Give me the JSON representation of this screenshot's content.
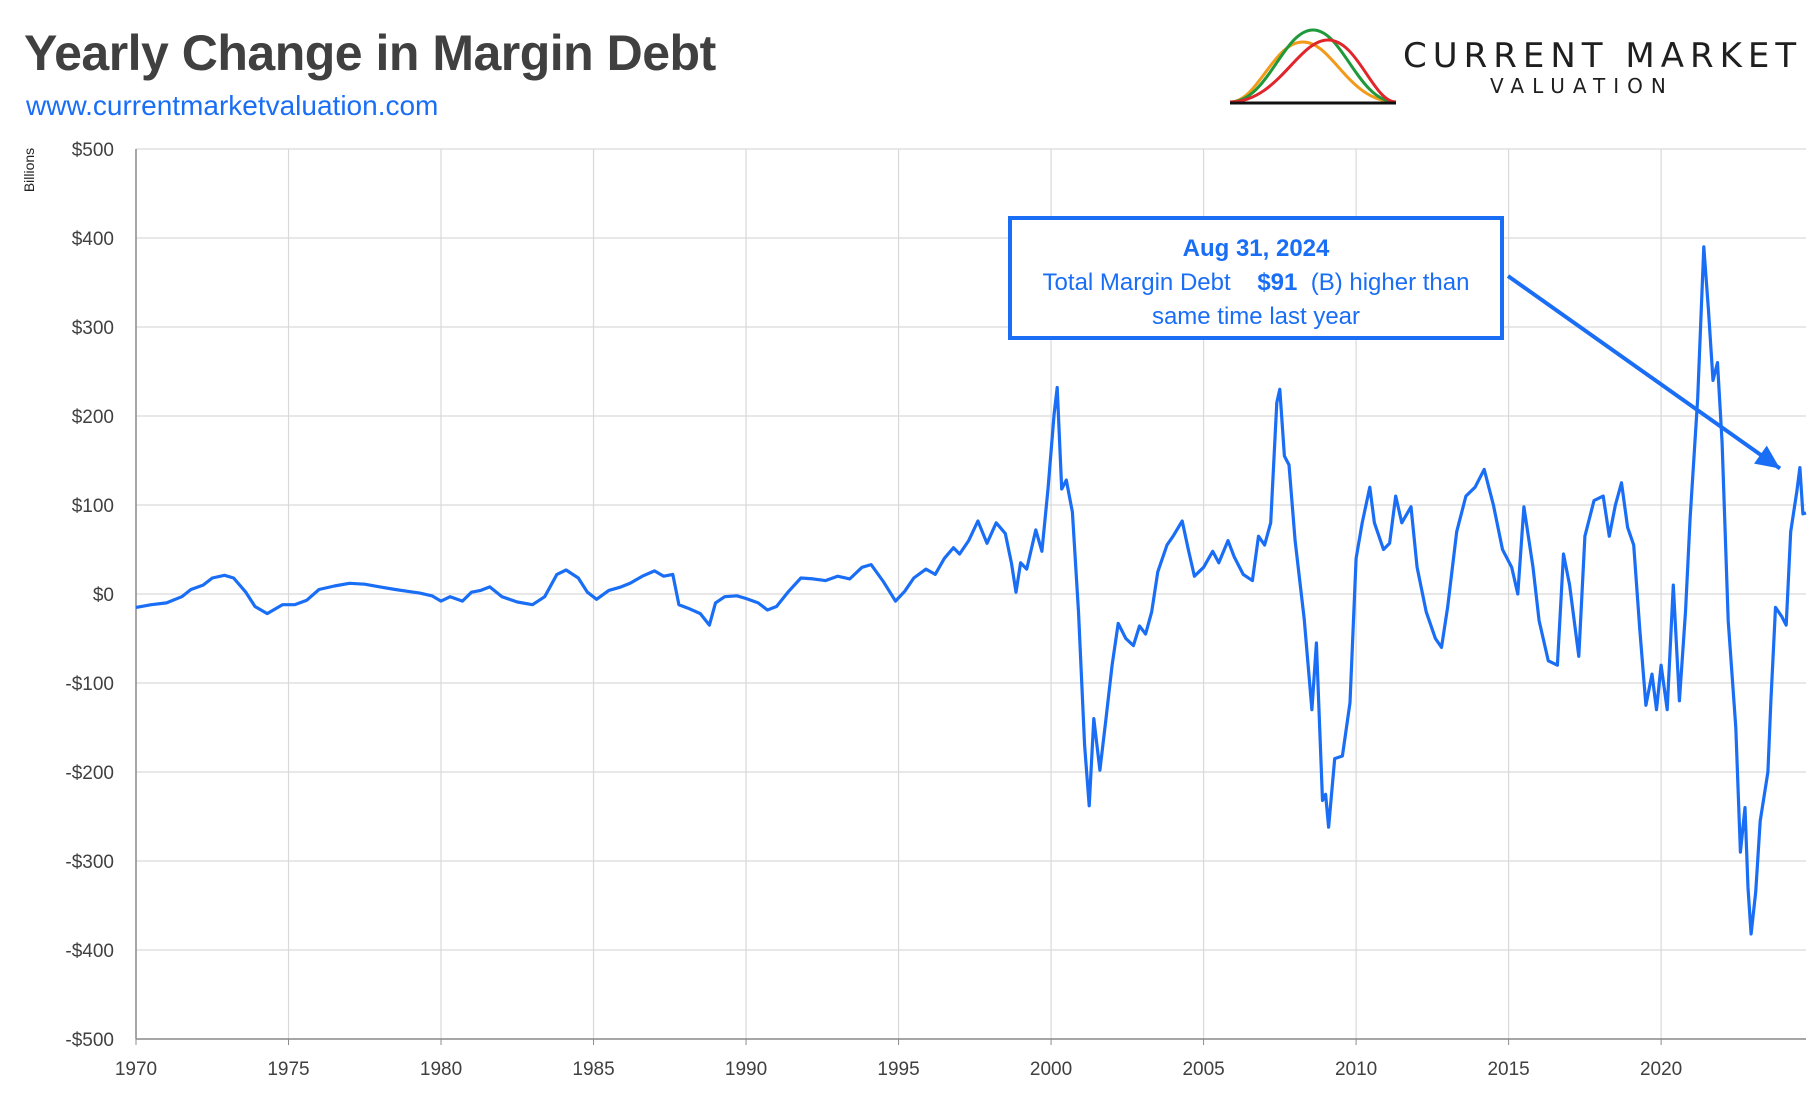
{
  "header": {
    "title": "Yearly Change in Margin Debt",
    "url": "www.currentmarketvaluation.com"
  },
  "logo": {
    "line1": "CURRENT MARKET",
    "line2": "VALUATION",
    "colors": {
      "orange": "#f29a1a",
      "green": "#1f9a3a",
      "red": "#e0262b",
      "base": "#111111"
    }
  },
  "annotation": {
    "date": "Aug 31, 2024",
    "label": "Total Margin Debt",
    "value": "$91",
    "suffix": " (B) higher than",
    "line3": "same time last year"
  },
  "chart_data": {
    "type": "line",
    "title": "Yearly Change in Margin Debt",
    "ylabel": "Billions",
    "xlabel": "",
    "xlim": [
      1970,
      2024.75
    ],
    "ylim": [
      -500,
      500
    ],
    "x_ticks": [
      "1970",
      "1975",
      "1980",
      "1985",
      "1990",
      "1995",
      "2000",
      "2005",
      "2010",
      "2015",
      "2020"
    ],
    "y_ticks": [
      "$500",
      "$400",
      "$300",
      "$200",
      "$100",
      "$0",
      "-$100",
      "-$200",
      "-$300",
      "-$400",
      "-$500"
    ],
    "grid": true,
    "color": "#1a6ef5",
    "series": [
      {
        "points": [
          [
            1970.0,
            -15
          ],
          [
            1970.5,
            -12
          ],
          [
            1971.0,
            -10
          ],
          [
            1971.5,
            -3
          ],
          [
            1971.8,
            5
          ],
          [
            1972.2,
            10
          ],
          [
            1972.5,
            18
          ],
          [
            1972.9,
            21
          ],
          [
            1973.2,
            18
          ],
          [
            1973.6,
            2
          ],
          [
            1973.9,
            -14
          ],
          [
            1974.3,
            -22
          ],
          [
            1974.8,
            -12
          ],
          [
            1975.2,
            -12
          ],
          [
            1975.6,
            -7
          ],
          [
            1976.0,
            5
          ],
          [
            1976.5,
            9
          ],
          [
            1977.0,
            12
          ],
          [
            1977.5,
            11
          ],
          [
            1978.0,
            8
          ],
          [
            1978.5,
            5
          ],
          [
            1978.9,
            3
          ],
          [
            1979.3,
            1
          ],
          [
            1979.7,
            -2
          ],
          [
            1980.0,
            -8
          ],
          [
            1980.3,
            -3
          ],
          [
            1980.7,
            -8
          ],
          [
            1981.0,
            2
          ],
          [
            1981.3,
            4
          ],
          [
            1981.6,
            8
          ],
          [
            1982.0,
            -3
          ],
          [
            1982.5,
            -9
          ],
          [
            1983.0,
            -12
          ],
          [
            1983.4,
            -3
          ],
          [
            1983.8,
            22
          ],
          [
            1984.1,
            27
          ],
          [
            1984.5,
            18
          ],
          [
            1984.8,
            2
          ],
          [
            1985.1,
            -6
          ],
          [
            1985.5,
            4
          ],
          [
            1985.9,
            8
          ],
          [
            1986.2,
            12
          ],
          [
            1986.6,
            20
          ],
          [
            1987.0,
            26
          ],
          [
            1987.3,
            20
          ],
          [
            1987.6,
            22
          ],
          [
            1987.8,
            -12
          ],
          [
            1988.1,
            -16
          ],
          [
            1988.5,
            -22
          ],
          [
            1988.8,
            -35
          ],
          [
            1989.0,
            -10
          ],
          [
            1989.3,
            -3
          ],
          [
            1989.7,
            -2
          ],
          [
            1990.0,
            -5
          ],
          [
            1990.4,
            -10
          ],
          [
            1990.7,
            -18
          ],
          [
            1991.0,
            -14
          ],
          [
            1991.4,
            3
          ],
          [
            1991.8,
            18
          ],
          [
            1992.2,
            17
          ],
          [
            1992.6,
            15
          ],
          [
            1993.0,
            20
          ],
          [
            1993.4,
            17
          ],
          [
            1993.8,
            30
          ],
          [
            1994.1,
            33
          ],
          [
            1994.5,
            14
          ],
          [
            1994.9,
            -8
          ],
          [
            1995.2,
            3
          ],
          [
            1995.5,
            18
          ],
          [
            1995.9,
            28
          ],
          [
            1996.2,
            22
          ],
          [
            1996.5,
            40
          ],
          [
            1996.8,
            52
          ],
          [
            1997.0,
            45
          ],
          [
            1997.3,
            60
          ],
          [
            1997.6,
            82
          ],
          [
            1997.9,
            57
          ],
          [
            1998.2,
            80
          ],
          [
            1998.5,
            68
          ],
          [
            1998.7,
            35
          ],
          [
            1998.85,
            2
          ],
          [
            1999.0,
            35
          ],
          [
            1999.2,
            28
          ],
          [
            1999.5,
            72
          ],
          [
            1999.7,
            48
          ],
          [
            1999.9,
            118
          ],
          [
            2000.1,
            202
          ],
          [
            2000.2,
            232
          ],
          [
            2000.35,
            118
          ],
          [
            2000.5,
            128
          ],
          [
            2000.7,
            92
          ],
          [
            2000.9,
            -20
          ],
          [
            2001.1,
            -170
          ],
          [
            2001.25,
            -238
          ],
          [
            2001.4,
            -140
          ],
          [
            2001.6,
            -198
          ],
          [
            2001.8,
            -140
          ],
          [
            2002.0,
            -80
          ],
          [
            2002.2,
            -33
          ],
          [
            2002.45,
            -50
          ],
          [
            2002.7,
            -58
          ],
          [
            2002.9,
            -36
          ],
          [
            2003.1,
            -45
          ],
          [
            2003.3,
            -20
          ],
          [
            2003.5,
            25
          ],
          [
            2003.8,
            55
          ],
          [
            2004.0,
            65
          ],
          [
            2004.3,
            82
          ],
          [
            2004.5,
            50
          ],
          [
            2004.7,
            20
          ],
          [
            2005.0,
            30
          ],
          [
            2005.3,
            48
          ],
          [
            2005.5,
            35
          ],
          [
            2005.8,
            60
          ],
          [
            2006.0,
            42
          ],
          [
            2006.3,
            22
          ],
          [
            2006.6,
            15
          ],
          [
            2006.8,
            65
          ],
          [
            2007.0,
            55
          ],
          [
            2007.2,
            80
          ],
          [
            2007.4,
            215
          ],
          [
            2007.5,
            230
          ],
          [
            2007.65,
            155
          ],
          [
            2007.8,
            145
          ],
          [
            2008.0,
            60
          ],
          [
            2008.3,
            -28
          ],
          [
            2008.55,
            -130
          ],
          [
            2008.7,
            -55
          ],
          [
            2008.9,
            -232
          ],
          [
            2009.0,
            -225
          ],
          [
            2009.1,
            -262
          ],
          [
            2009.3,
            -185
          ],
          [
            2009.55,
            -182
          ],
          [
            2009.8,
            -122
          ],
          [
            2010.0,
            40
          ],
          [
            2010.2,
            80
          ],
          [
            2010.45,
            120
          ],
          [
            2010.6,
            80
          ],
          [
            2010.9,
            50
          ],
          [
            2011.1,
            57
          ],
          [
            2011.3,
            110
          ],
          [
            2011.5,
            80
          ],
          [
            2011.8,
            98
          ],
          [
            2012.0,
            30
          ],
          [
            2012.3,
            -20
          ],
          [
            2012.6,
            -50
          ],
          [
            2012.8,
            -60
          ],
          [
            2013.0,
            -15
          ],
          [
            2013.3,
            70
          ],
          [
            2013.6,
            110
          ],
          [
            2013.9,
            120
          ],
          [
            2014.2,
            140
          ],
          [
            2014.35,
            120
          ],
          [
            2014.5,
            100
          ],
          [
            2014.8,
            50
          ],
          [
            2015.1,
            30
          ],
          [
            2015.3,
            0
          ],
          [
            2015.5,
            98
          ],
          [
            2015.8,
            30
          ],
          [
            2016.0,
            -30
          ],
          [
            2016.3,
            -75
          ],
          [
            2016.6,
            -80
          ],
          [
            2016.8,
            45
          ],
          [
            2017.0,
            10
          ],
          [
            2017.3,
            -70
          ],
          [
            2017.5,
            65
          ],
          [
            2017.8,
            105
          ],
          [
            2018.1,
            110
          ],
          [
            2018.3,
            65
          ],
          [
            2018.5,
            100
          ],
          [
            2018.7,
            125
          ],
          [
            2018.9,
            75
          ],
          [
            2019.1,
            55
          ],
          [
            2019.3,
            -40
          ],
          [
            2019.5,
            -125
          ],
          [
            2019.7,
            -90
          ],
          [
            2019.85,
            -130
          ],
          [
            2020.0,
            -80
          ],
          [
            2020.2,
            -130
          ],
          [
            2020.4,
            10
          ],
          [
            2020.6,
            -120
          ],
          [
            2020.8,
            -20
          ],
          [
            2020.95,
            85
          ],
          [
            2021.2,
            220
          ],
          [
            2021.4,
            390
          ],
          [
            2021.55,
            320
          ],
          [
            2021.7,
            240
          ],
          [
            2021.85,
            260
          ],
          [
            2022.0,
            170
          ],
          [
            2022.2,
            -30
          ],
          [
            2022.45,
            -150
          ],
          [
            2022.6,
            -290
          ],
          [
            2022.75,
            -240
          ],
          [
            2022.85,
            -330
          ],
          [
            2022.95,
            -382
          ],
          [
            2023.1,
            -335
          ],
          [
            2023.25,
            -255
          ],
          [
            2023.5,
            -200
          ],
          [
            2023.6,
            -120
          ],
          [
            2023.75,
            -15
          ],
          [
            2023.95,
            -25
          ],
          [
            2024.1,
            -35
          ],
          [
            2024.25,
            70
          ],
          [
            2024.45,
            115
          ],
          [
            2024.55,
            142
          ],
          [
            2024.65,
            90
          ],
          [
            2024.75,
            91
          ]
        ]
      }
    ]
  }
}
